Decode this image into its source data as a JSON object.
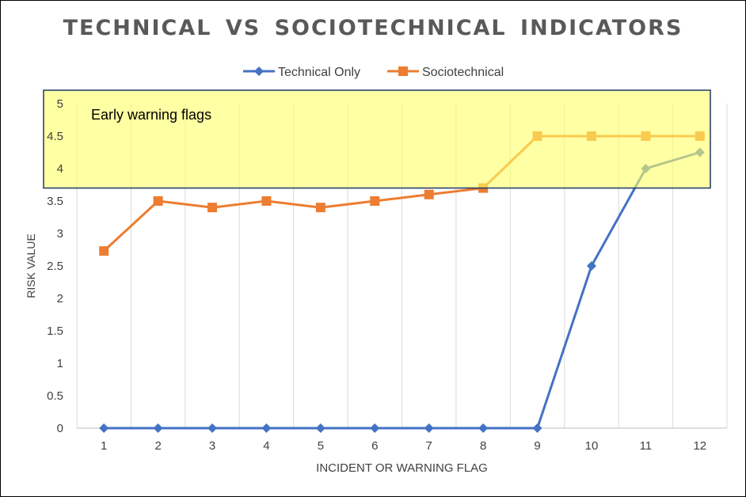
{
  "chart_data": {
    "type": "line",
    "title": "TECHNICAL  VS SOCIOTECHNICAL  INDICATORS",
    "xlabel": "INCIDENT OR WARNING FLAG",
    "ylabel": "RISK VALUE",
    "categories": [
      "1",
      "2",
      "3",
      "4",
      "5",
      "6",
      "7",
      "8",
      "9",
      "10",
      "11",
      "12"
    ],
    "ylim": [
      0,
      5
    ],
    "yticks": [
      "0",
      "0.5",
      "1",
      "1.5",
      "2",
      "2.5",
      "3",
      "3.5",
      "4",
      "4.5",
      "5"
    ],
    "grid": "vertical",
    "legend": "top-center",
    "series": [
      {
        "name": "Technical Only",
        "color": "#4472C4",
        "marker": "diamond",
        "values": [
          0,
          0,
          0,
          0,
          0,
          0,
          0,
          0,
          0,
          2.5,
          4.0,
          4.25
        ]
      },
      {
        "name": "Sociotechnical",
        "color": "#ED7D31",
        "marker": "square",
        "values": [
          2.73,
          3.5,
          3.4,
          3.5,
          3.4,
          3.5,
          3.6,
          3.7,
          4.5,
          4.5,
          4.5,
          4.5
        ]
      }
    ],
    "annotation": {
      "text": "Early warning flags",
      "y_from": 3.7,
      "y_to": 5,
      "fill": "#FFFF66"
    }
  }
}
